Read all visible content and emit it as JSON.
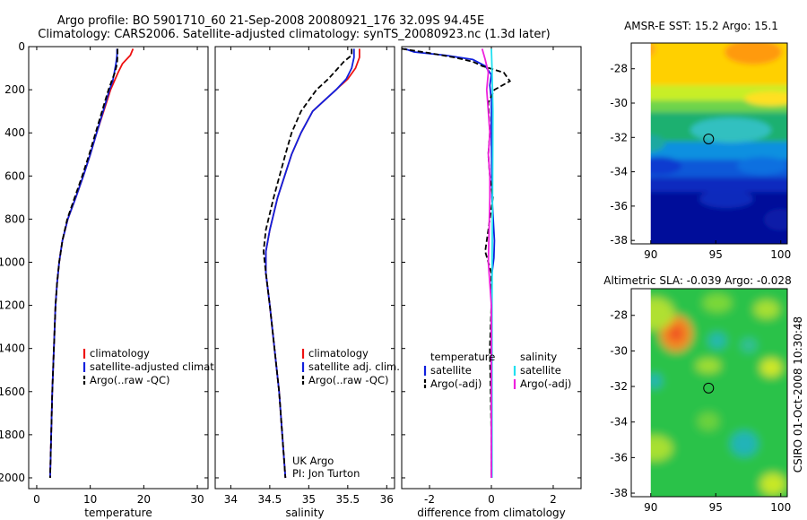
{
  "title": {
    "line1": "Argo profile: BO 5901710_60 21-Sep-2008 20080921_176 32.09S 94.45E",
    "line2": "Climatology: CARS2006. Satellite-adjusted climatology: synTS_20080923.nc (1.3d later)"
  },
  "credit": "CSIRO 01-Oct-2008 10:30:48",
  "colors": {
    "climatology": "#ee1111",
    "satellite": "#1020dd",
    "argo": "#000000",
    "salinity_satellite": "#22e0f0",
    "salinity_argo": "#ee22dd",
    "marker": "#000000"
  },
  "chart_data": [
    {
      "type": "line",
      "xlabel": "temperature",
      "xlim": [
        -1.5,
        32
      ],
      "ylim": [
        2050,
        0
      ],
      "y_inverted": true,
      "xticks": [
        0,
        10,
        20,
        30
      ],
      "yticks": [
        0,
        200,
        400,
        600,
        800,
        1000,
        1200,
        1400,
        1600,
        1800,
        2000
      ],
      "yticklabels": [
        "0",
        "200",
        "400",
        "600",
        "800",
        "1000",
        "1200",
        "1400",
        "1600",
        "1800",
        "2000"
      ],
      "legend": [
        "climatology",
        "satellite-adjusted climatology",
        "Argo(..raw -QC)"
      ],
      "series": [
        {
          "name": "climatology",
          "style": "solid",
          "color": "#ee1111",
          "x": [
            18.0,
            17.5,
            16.0,
            15.2,
            14.5,
            13.8,
            12.5,
            11.2,
            10.0,
            8.7,
            7.3,
            5.8,
            4.8,
            4.2,
            3.8,
            3.5,
            3.2,
            2.9,
            2.7,
            2.6,
            2.5
          ],
          "y": [
            10,
            40,
            80,
            120,
            160,
            200,
            300,
            400,
            500,
            600,
            700,
            800,
            900,
            1000,
            1100,
            1200,
            1400,
            1600,
            1800,
            1900,
            2000
          ]
        },
        {
          "name": "satellite-adjusted climatology",
          "style": "solid",
          "color": "#1020dd",
          "x": [
            15.0,
            15.0,
            14.8,
            14.5,
            14.2,
            13.6,
            12.4,
            11.2,
            10.0,
            8.7,
            7.3,
            5.8,
            4.8,
            4.2,
            3.8,
            3.5,
            3.2,
            2.9,
            2.7,
            2.6,
            2.5
          ],
          "y": [
            10,
            40,
            80,
            120,
            160,
            200,
            300,
            400,
            500,
            600,
            700,
            800,
            900,
            1000,
            1100,
            1200,
            1400,
            1600,
            1800,
            1900,
            2000
          ]
        },
        {
          "name": "Argo(..raw -QC)",
          "style": "dashed",
          "color": "#000000",
          "x": [
            15.1,
            15.1,
            15.0,
            14.6,
            14.0,
            13.4,
            12.2,
            11.0,
            9.8,
            8.5,
            7.1,
            5.7,
            4.8,
            4.2,
            3.8,
            3.5,
            3.2,
            2.9,
            2.7,
            2.6,
            2.5
          ],
          "y": [
            10,
            40,
            80,
            120,
            160,
            200,
            300,
            400,
            500,
            600,
            700,
            800,
            900,
            1000,
            1100,
            1200,
            1400,
            1600,
            1800,
            1900,
            2000
          ]
        }
      ]
    },
    {
      "type": "line",
      "xlabel": "salinity",
      "xlim": [
        33.8,
        36.1
      ],
      "ylim": [
        2050,
        0
      ],
      "y_inverted": true,
      "xticks": [
        34,
        34.5,
        35,
        35.5,
        36
      ],
      "yticks": [
        0,
        200,
        400,
        600,
        800,
        1000,
        1200,
        1400,
        1600,
        1800,
        2000
      ],
      "annotation": [
        "UK Argo",
        "PI: Jon Turton"
      ],
      "legend": [
        "climatology",
        "satellite adj. clim.",
        "Argo(..raw -QC)"
      ],
      "series": [
        {
          "name": "climatology",
          "style": "solid",
          "color": "#ee1111",
          "x": [
            35.65,
            35.65,
            35.6,
            35.5,
            35.35,
            35.2,
            35.05,
            34.9,
            34.78,
            34.6,
            34.5,
            34.45,
            34.45,
            34.5,
            34.56,
            34.62,
            34.66,
            34.7
          ],
          "y": [
            10,
            50,
            100,
            150,
            200,
            250,
            300,
            400,
            500,
            700,
            850,
            950,
            1050,
            1200,
            1400,
            1600,
            1800,
            2000
          ]
        },
        {
          "name": "satellite adj. clim.",
          "style": "solid",
          "color": "#1020dd",
          "x": [
            35.58,
            35.58,
            35.55,
            35.48,
            35.35,
            35.2,
            35.05,
            34.9,
            34.78,
            34.6,
            34.5,
            34.45,
            34.45,
            34.5,
            34.56,
            34.62,
            34.66,
            34.7
          ],
          "y": [
            10,
            50,
            100,
            150,
            200,
            250,
            300,
            400,
            500,
            700,
            850,
            950,
            1050,
            1200,
            1400,
            1600,
            1800,
            2000
          ]
        },
        {
          "name": "Argo(..raw -QC)",
          "style": "dashed",
          "color": "#000000",
          "x": [
            35.55,
            35.55,
            35.45,
            35.35,
            35.25,
            35.1,
            34.9,
            34.78,
            34.7,
            34.55,
            34.45,
            34.42,
            34.45,
            34.5,
            34.56,
            34.62,
            34.66,
            34.7
          ],
          "y": [
            10,
            40,
            70,
            110,
            150,
            200,
            300,
            400,
            500,
            700,
            850,
            950,
            1050,
            1200,
            1400,
            1600,
            1800,
            2000
          ]
        }
      ]
    },
    {
      "type": "line",
      "xlabel": "difference from climatology",
      "xlim": [
        -2.9,
        2.9
      ],
      "ylim": [
        2050,
        0
      ],
      "y_inverted": true,
      "xticks": [
        -2,
        0,
        2
      ],
      "yticks": [
        0,
        200,
        400,
        600,
        800,
        1000,
        1200,
        1400,
        1600,
        1800,
        2000
      ],
      "legend": [
        {
          "group": "temperature",
          "items": [
            "satellite",
            "Argo(-adj)"
          ]
        },
        {
          "group": "salinity",
          "items": [
            "satellite",
            "Argo(-adj)"
          ]
        }
      ],
      "series": [
        {
          "name": "temperature satellite",
          "style": "solid",
          "color": "#1020dd",
          "x": [
            -2.8,
            -2.5,
            -1.5,
            -0.6,
            -0.2,
            0.0,
            -0.05,
            0.0,
            0.0,
            0.02,
            0.1,
            0.08,
            0.02,
            0.0,
            0.0,
            0.0
          ],
          "y": [
            10,
            25,
            40,
            60,
            90,
            130,
            180,
            250,
            400,
            700,
            900,
            980,
            1050,
            1200,
            1600,
            2000
          ]
        },
        {
          "name": "temperature Argo(-adj)",
          "style": "dashed",
          "color": "#000000",
          "x": [
            -2.9,
            -2.0,
            -1.2,
            -0.6,
            -0.3,
            0.4,
            0.6,
            0.1,
            -0.1,
            -0.05,
            -0.1,
            -0.05,
            0.05,
            -0.05,
            -0.2,
            -0.1,
            0.0,
            0.0,
            -0.05,
            0.0,
            0.0
          ],
          "y": [
            10,
            30,
            50,
            70,
            90,
            120,
            160,
            200,
            260,
            400,
            500,
            600,
            700,
            800,
            950,
            1000,
            1050,
            1200,
            1400,
            1800,
            2000
          ]
        },
        {
          "name": "salinity satellite",
          "style": "solid",
          "color": "#22e0f0",
          "x": [
            0.0,
            0.02,
            0.05,
            0.04,
            0.03,
            0.02,
            0.02,
            0.02,
            0.02
          ],
          "y": [
            10,
            100,
            300,
            600,
            900,
            1200,
            1500,
            1800,
            2000
          ]
        },
        {
          "name": "salinity Argo(-adj)",
          "style": "solid",
          "color": "#ee22dd",
          "x": [
            -0.3,
            -0.2,
            -0.1,
            -0.15,
            -0.1,
            -0.05,
            -0.1,
            -0.05,
            -0.05,
            -0.1,
            0.0,
            0.0,
            0.0
          ],
          "y": [
            10,
            60,
            120,
            200,
            300,
            400,
            500,
            600,
            700,
            1000,
            1200,
            1500,
            2000
          ]
        }
      ]
    },
    {
      "type": "heatmap",
      "title": "AMSR-E SST: 15.2  Argo: 15.1",
      "xlim": [
        88.5,
        100.5
      ],
      "ylim": [
        -38.2,
        -26.5
      ],
      "xticks": [
        90,
        95,
        100
      ],
      "yticks": [
        -28,
        -30,
        -32,
        -34,
        -36,
        -38
      ],
      "marker": {
        "lon": 94.45,
        "lat": -32.09
      }
    },
    {
      "type": "heatmap",
      "title": "Altimetric SLA: -0.039  Argo: -0.028",
      "xlim": [
        88.5,
        100.5
      ],
      "ylim": [
        -38.2,
        -26.5
      ],
      "xticks": [
        90,
        95,
        100
      ],
      "yticks": [
        -28,
        -30,
        -32,
        -34,
        -36,
        -38
      ],
      "marker": {
        "lon": 94.45,
        "lat": -32.09
      }
    }
  ]
}
